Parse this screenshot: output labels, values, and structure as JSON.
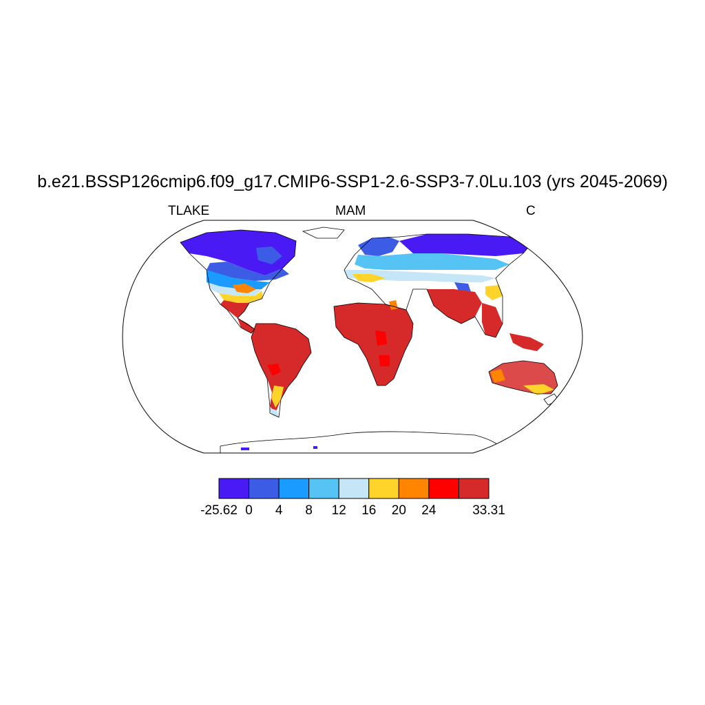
{
  "title": "b.e21.BSSP126cmip6.f09_g17.CMIP6-SSP1-2.6-SSP3-7.0Lu.103 (yrs 2045-2069)",
  "left_label": "TLAKE",
  "center_label": "MAM",
  "right_label": "C",
  "colorbar": {
    "colors": [
      "#4a1af5",
      "#3d5ce6",
      "#1a9bff",
      "#55c3f3",
      "#c5e6f7",
      "#ffd42a",
      "#ff8500",
      "#ff0000",
      "#d62a2a"
    ],
    "labels": [
      "-25.62",
      "0",
      "4",
      "8",
      "12",
      "16",
      "20",
      "24",
      "33.31"
    ],
    "label_edges": [
      0,
      1,
      2,
      3,
      4,
      5,
      6,
      7,
      9
    ]
  }
}
